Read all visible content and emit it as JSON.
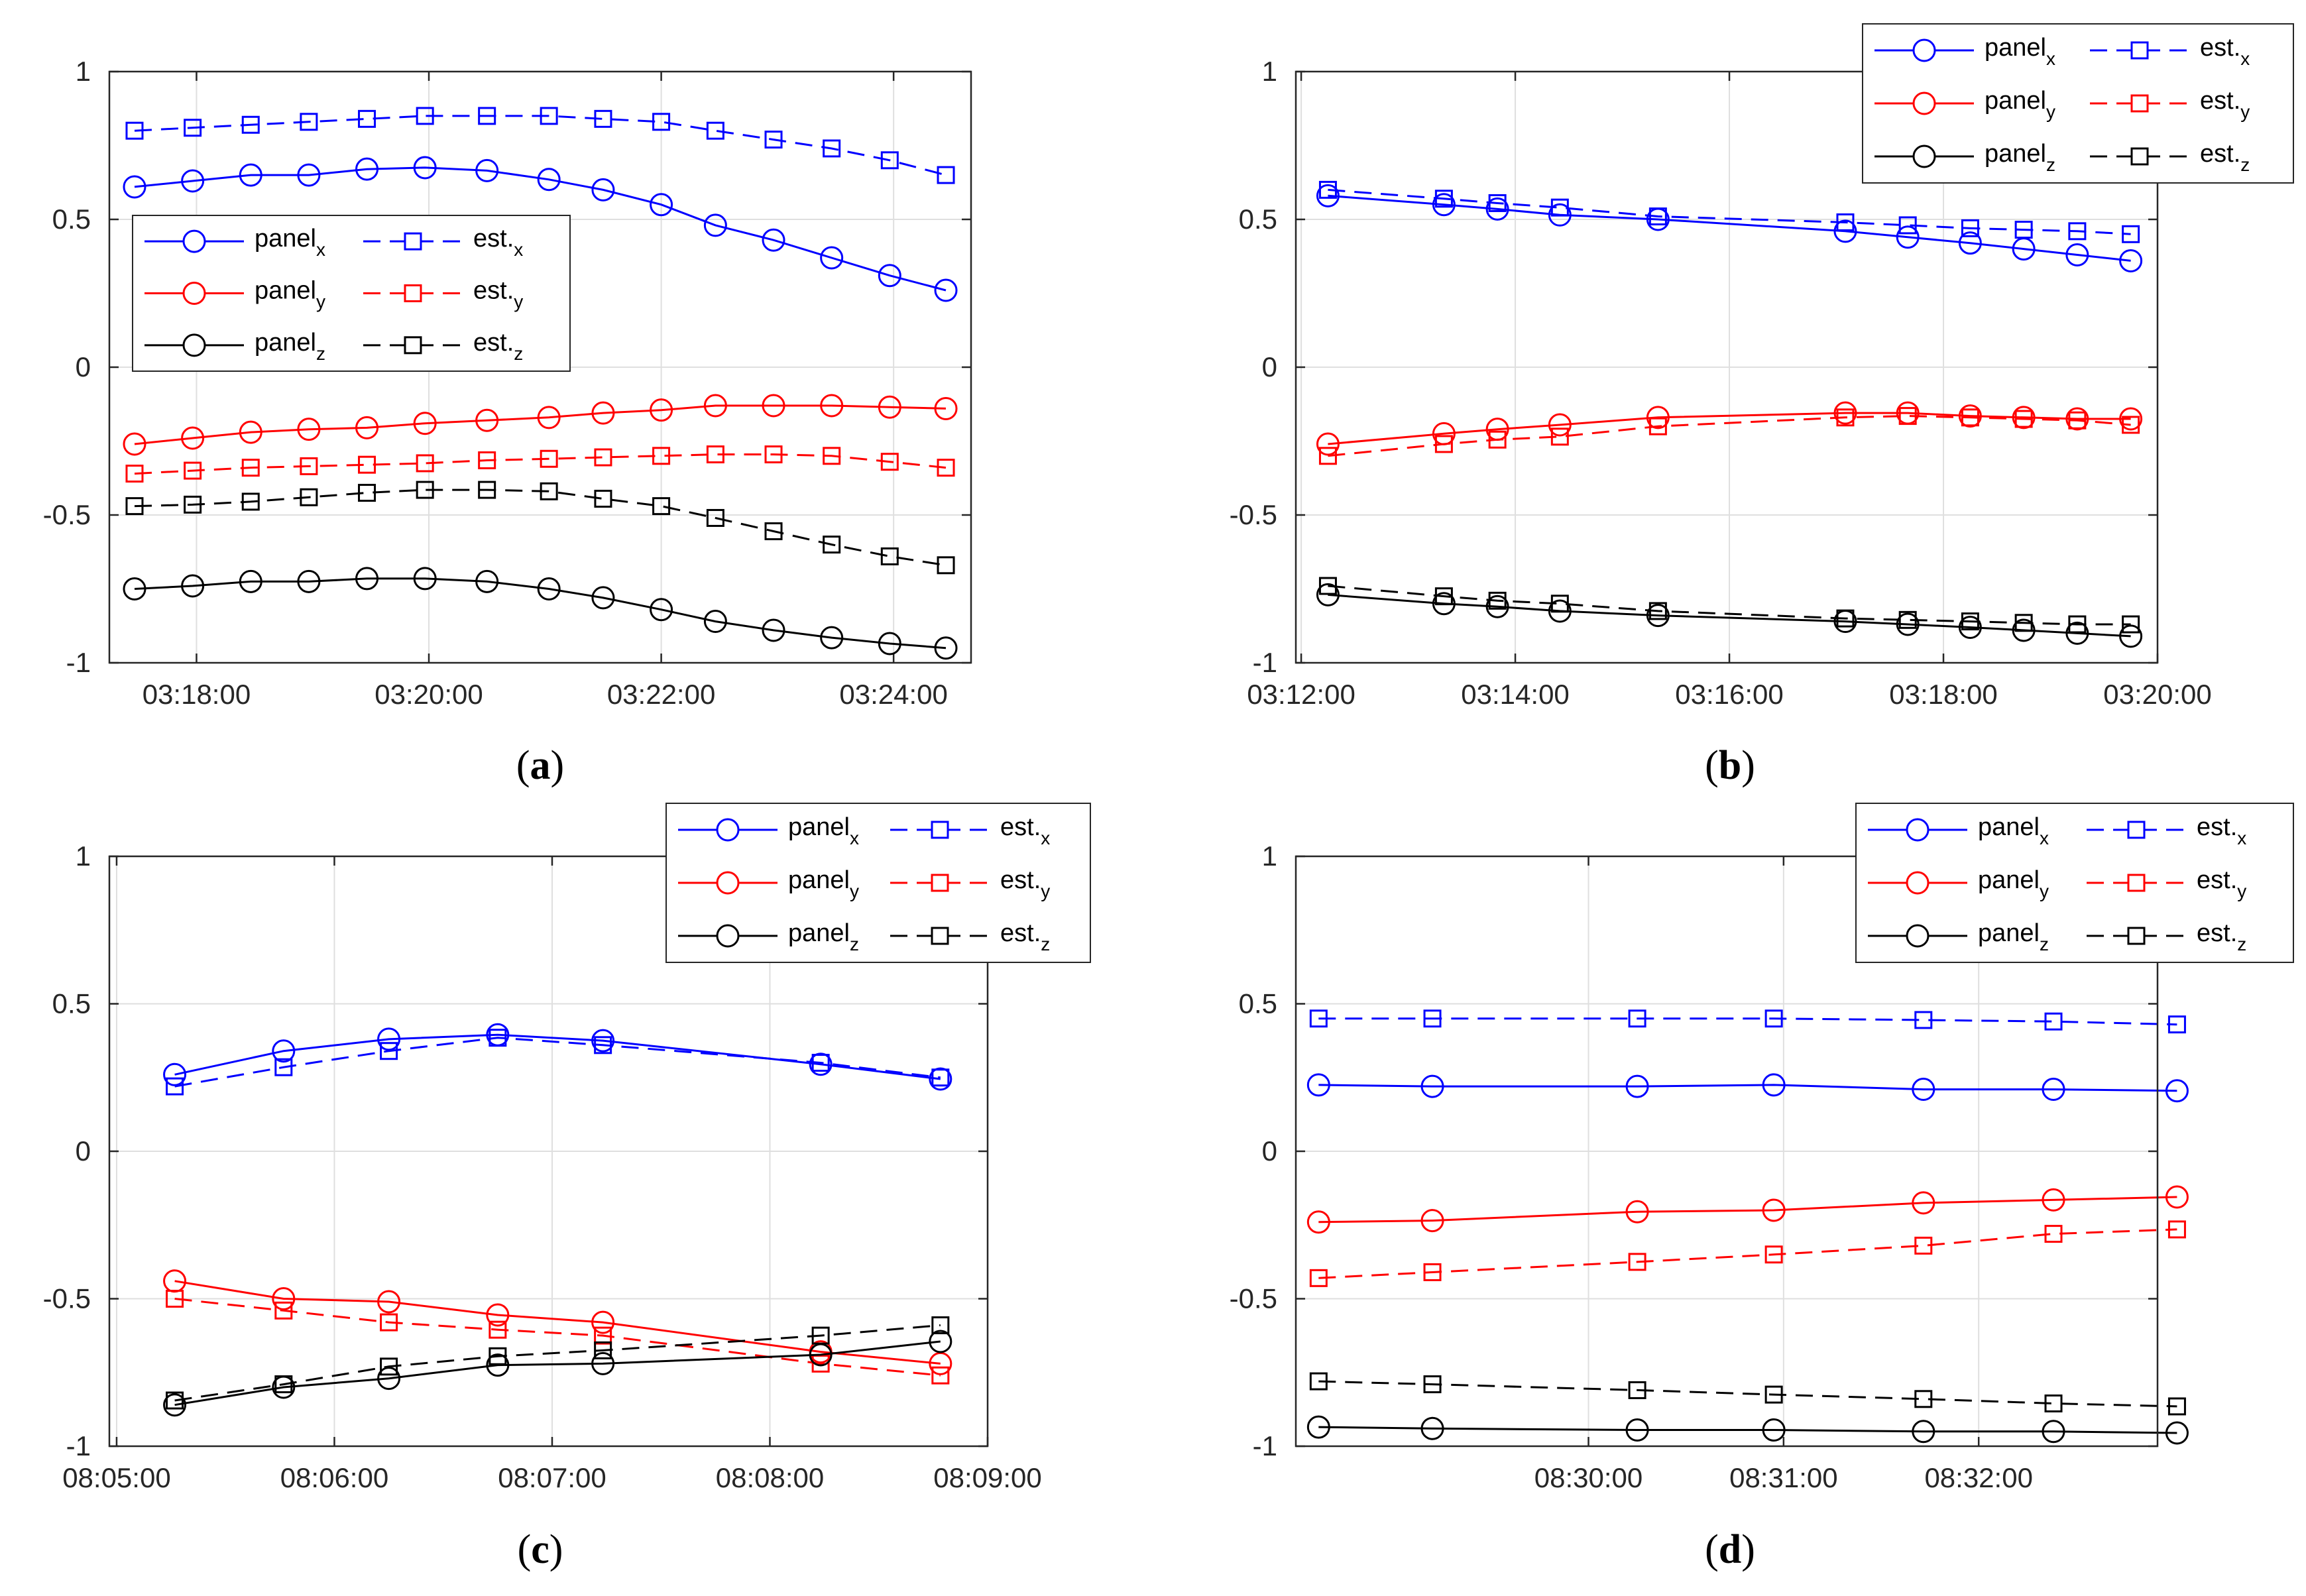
{
  "chart_data": [
    {
      "type": "line",
      "caption": "(a)",
      "xticks": [
        "03:18:00",
        "03:20:00",
        "03:22:00",
        "03:24:00"
      ],
      "xtick_seconds": [
        0,
        120,
        240,
        360
      ],
      "xlim_seconds": [
        -45,
        400
      ],
      "ylim": [
        -1,
        1
      ],
      "yticks": [
        "1",
        "0.5",
        "0",
        "-0.5",
        "-1"
      ],
      "grid": true,
      "legend": "left-middle",
      "x_seconds": [
        -32,
        -2,
        28,
        58,
        88,
        118,
        150,
        182,
        210,
        240,
        268,
        298,
        328,
        358,
        387
      ],
      "series": [
        {
          "label": "panel",
          "sub": "x",
          "color": "#0000ff",
          "style": "solid",
          "marker": "circle",
          "values": [
            0.61,
            0.63,
            0.65,
            0.65,
            0.67,
            0.675,
            0.665,
            0.635,
            0.6,
            0.55,
            0.48,
            0.43,
            0.37,
            0.31,
            0.26
          ]
        },
        {
          "label": "est.",
          "sub": "x",
          "color": "#0000ff",
          "style": "dashed",
          "marker": "square",
          "values": [
            0.8,
            0.81,
            0.82,
            0.83,
            0.84,
            0.85,
            0.85,
            0.85,
            0.84,
            0.83,
            0.8,
            0.77,
            0.74,
            0.7,
            0.65
          ]
        },
        {
          "label": "panel",
          "sub": "y",
          "color": "#ff0000",
          "style": "solid",
          "marker": "circle",
          "values": [
            -0.26,
            -0.24,
            -0.22,
            -0.21,
            -0.205,
            -0.19,
            -0.18,
            -0.17,
            -0.155,
            -0.145,
            -0.13,
            -0.13,
            -0.13,
            -0.135,
            -0.14
          ]
        },
        {
          "label": "est.",
          "sub": "y",
          "color": "#ff0000",
          "style": "dashed",
          "marker": "square",
          "values": [
            -0.36,
            -0.35,
            -0.34,
            -0.335,
            -0.33,
            -0.325,
            -0.315,
            -0.31,
            -0.305,
            -0.3,
            -0.295,
            -0.295,
            -0.3,
            -0.32,
            -0.34
          ]
        },
        {
          "label": "panel",
          "sub": "z",
          "color": "#000000",
          "style": "solid",
          "marker": "circle",
          "values": [
            -0.75,
            -0.74,
            -0.725,
            -0.725,
            -0.715,
            -0.715,
            -0.725,
            -0.75,
            -0.78,
            -0.82,
            -0.86,
            -0.89,
            -0.915,
            -0.935,
            -0.95
          ]
        },
        {
          "label": "est.",
          "sub": "z",
          "color": "#000000",
          "style": "dashed",
          "marker": "square",
          "values": [
            -0.47,
            -0.465,
            -0.455,
            -0.44,
            -0.425,
            -0.415,
            -0.415,
            -0.42,
            -0.445,
            -0.47,
            -0.51,
            -0.555,
            -0.6,
            -0.64,
            -0.67
          ]
        }
      ]
    },
    {
      "type": "line",
      "caption": "(b)",
      "xticks": [
        "03:12:00",
        "03:14:00",
        "03:16:00",
        "03:18:00",
        "03:20:00"
      ],
      "xtick_seconds": [
        0,
        120,
        240,
        360,
        480
      ],
      "xlim_seconds": [
        -3,
        480
      ],
      "ylim": [
        -1,
        1
      ],
      "yticks": [
        "1",
        "0.5",
        "0",
        "-0.5",
        "-1"
      ],
      "grid": true,
      "legend": "top-right",
      "x_seconds": [
        15,
        80,
        110,
        145,
        200,
        305,
        340,
        375,
        405,
        435,
        465
      ],
      "series": [
        {
          "label": "panel",
          "sub": "x",
          "color": "#0000ff",
          "style": "solid",
          "marker": "circle",
          "values": [
            0.58,
            0.55,
            0.535,
            0.515,
            0.5,
            0.46,
            0.44,
            0.42,
            0.4,
            0.38,
            0.36
          ]
        },
        {
          "label": "est.",
          "sub": "x",
          "color": "#0000ff",
          "style": "dashed",
          "marker": "square",
          "values": [
            0.6,
            0.57,
            0.555,
            0.54,
            0.51,
            0.49,
            0.48,
            0.47,
            0.465,
            0.46,
            0.45
          ]
        },
        {
          "label": "panel",
          "sub": "y",
          "color": "#ff0000",
          "style": "solid",
          "marker": "circle",
          "values": [
            -0.26,
            -0.225,
            -0.21,
            -0.195,
            -0.17,
            -0.155,
            -0.155,
            -0.165,
            -0.17,
            -0.175,
            -0.175
          ]
        },
        {
          "label": "est.",
          "sub": "y",
          "color": "#ff0000",
          "style": "dashed",
          "marker": "square",
          "values": [
            -0.3,
            -0.26,
            -0.245,
            -0.235,
            -0.2,
            -0.17,
            -0.165,
            -0.17,
            -0.175,
            -0.18,
            -0.195
          ]
        },
        {
          "label": "panel",
          "sub": "z",
          "color": "#000000",
          "style": "solid",
          "marker": "circle",
          "values": [
            -0.77,
            -0.8,
            -0.81,
            -0.825,
            -0.84,
            -0.86,
            -0.87,
            -0.88,
            -0.89,
            -0.9,
            -0.91
          ]
        },
        {
          "label": "est.",
          "sub": "z",
          "color": "#000000",
          "style": "dashed",
          "marker": "square",
          "values": [
            -0.74,
            -0.775,
            -0.79,
            -0.8,
            -0.825,
            -0.85,
            -0.855,
            -0.86,
            -0.865,
            -0.87,
            -0.87
          ]
        }
      ]
    },
    {
      "type": "line",
      "caption": "(c)",
      "xticks": [
        "08:05:00",
        "08:06:00",
        "08:07:00",
        "08:08:00",
        "08:09:00"
      ],
      "xtick_seconds": [
        0,
        60,
        120,
        180,
        240
      ],
      "xlim_seconds": [
        -2,
        240
      ],
      "ylim": [
        -1,
        1
      ],
      "yticks": [
        "1",
        "0.5",
        "0",
        "-0.5",
        "-1"
      ],
      "grid": true,
      "legend": "top-right",
      "x_seconds": [
        16,
        46,
        75,
        105,
        134,
        194,
        227
      ],
      "series": [
        {
          "label": "panel",
          "sub": "x",
          "color": "#0000ff",
          "style": "solid",
          "marker": "circle",
          "values": [
            0.26,
            0.34,
            0.38,
            0.395,
            0.375,
            0.295,
            0.245
          ]
        },
        {
          "label": "est.",
          "sub": "x",
          "color": "#0000ff",
          "style": "dashed",
          "marker": "square",
          "values": [
            0.22,
            0.285,
            0.34,
            0.385,
            0.36,
            0.3,
            0.25
          ]
        },
        {
          "label": "panel",
          "sub": "y",
          "color": "#ff0000",
          "style": "solid",
          "marker": "circle",
          "values": [
            -0.44,
            -0.5,
            -0.51,
            -0.555,
            -0.58,
            -0.68,
            -0.72
          ]
        },
        {
          "label": "est.",
          "sub": "y",
          "color": "#ff0000",
          "style": "dashed",
          "marker": "square",
          "values": [
            -0.5,
            -0.54,
            -0.58,
            -0.605,
            -0.625,
            -0.72,
            -0.76
          ]
        },
        {
          "label": "panel",
          "sub": "z",
          "color": "#000000",
          "style": "solid",
          "marker": "circle",
          "values": [
            -0.86,
            -0.8,
            -0.77,
            -0.725,
            -0.72,
            -0.69,
            -0.645
          ]
        },
        {
          "label": "est.",
          "sub": "z",
          "color": "#000000",
          "style": "dashed",
          "marker": "square",
          "values": [
            -0.845,
            -0.79,
            -0.73,
            -0.695,
            -0.675,
            -0.625,
            -0.59
          ]
        }
      ]
    },
    {
      "type": "line",
      "caption": "(d)",
      "xticks": [
        "08:30:00",
        "08:31:00",
        "08:32:00"
      ],
      "xtick_seconds": [
        0,
        60,
        120
      ],
      "xlim_seconds": [
        -90,
        175
      ],
      "ylim": [
        -1,
        1
      ],
      "yticks": [
        "1",
        "0.5",
        "0",
        "-0.5",
        "-1"
      ],
      "grid": true,
      "legend": "top-right",
      "x_seconds": [
        -83,
        -48,
        15,
        57,
        103,
        143,
        181
      ],
      "series": [
        {
          "label": "panel",
          "sub": "x",
          "color": "#0000ff",
          "style": "solid",
          "marker": "circle",
          "values": [
            0.225,
            0.22,
            0.22,
            0.225,
            0.21,
            0.21,
            0.205
          ]
        },
        {
          "label": "est.",
          "sub": "x",
          "color": "#0000ff",
          "style": "dashed",
          "marker": "square",
          "values": [
            0.45,
            0.45,
            0.45,
            0.45,
            0.445,
            0.44,
            0.43
          ]
        },
        {
          "label": "panel",
          "sub": "y",
          "color": "#ff0000",
          "style": "solid",
          "marker": "circle",
          "values": [
            -0.24,
            -0.235,
            -0.205,
            -0.2,
            -0.175,
            -0.165,
            -0.155
          ]
        },
        {
          "label": "est.",
          "sub": "y",
          "color": "#ff0000",
          "style": "dashed",
          "marker": "square",
          "values": [
            -0.43,
            -0.41,
            -0.375,
            -0.35,
            -0.32,
            -0.28,
            -0.265
          ]
        },
        {
          "label": "panel",
          "sub": "z",
          "color": "#000000",
          "style": "solid",
          "marker": "circle",
          "values": [
            -0.935,
            -0.94,
            -0.945,
            -0.945,
            -0.95,
            -0.95,
            -0.955
          ]
        },
        {
          "label": "est.",
          "sub": "z",
          "color": "#000000",
          "style": "dashed",
          "marker": "square",
          "values": [
            -0.78,
            -0.79,
            -0.81,
            -0.825,
            -0.84,
            -0.855,
            -0.865
          ]
        }
      ]
    }
  ]
}
